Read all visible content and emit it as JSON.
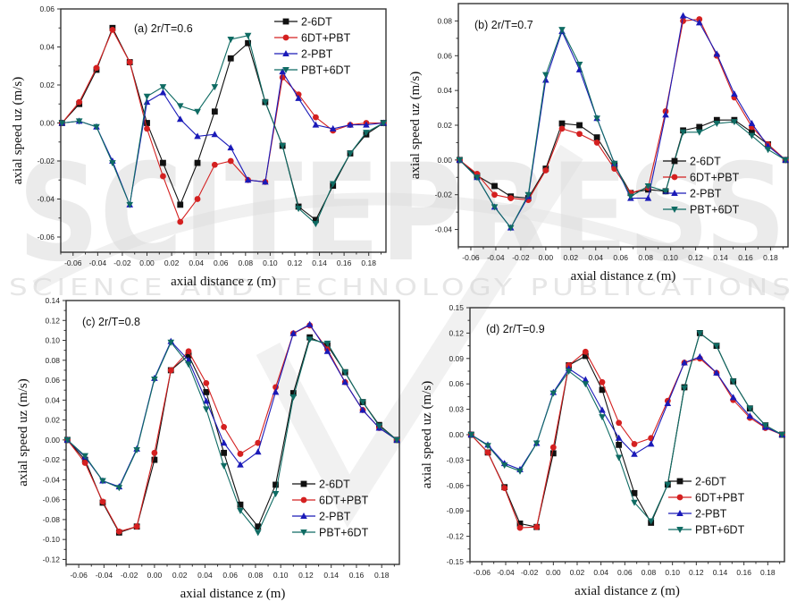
{
  "watermark": {
    "main": "SCITEPRESS",
    "sub": "SCIENCE AND TECHNOLOGY PUBLICATIONS"
  },
  "chart_data": [
    {
      "type": "line",
      "title": "(a)  2r/T=0.6",
      "xlabel": "axial distance  z  (m)",
      "ylabel": "axial speed  uz  (m/s)",
      "xlim": [
        -0.07,
        0.194
      ],
      "ylim": [
        -0.068,
        0.06
      ],
      "xticks": [
        -0.06,
        -0.04,
        -0.02,
        0.0,
        0.02,
        0.04,
        0.06,
        0.08,
        0.1,
        0.12,
        0.14,
        0.16,
        0.18
      ],
      "xtick_labels": [
        "-0.06",
        "-0.04",
        "-0.02",
        "0.00",
        "0.02",
        "0.04",
        "0.06",
        "0.08",
        "0.10",
        "0.12",
        "0.14",
        "0.16",
        "0.18"
      ],
      "yticks": [
        -0.06,
        -0.04,
        -0.02,
        0.0,
        0.02,
        0.04,
        0.06
      ],
      "ytick_labels": [
        "-0.06",
        "-0.04",
        "-0.02",
        "0.00",
        "0.02",
        "0.04",
        "0.06"
      ],
      "grid": false,
      "legend_position": "top-right",
      "x": [
        -0.069,
        -0.055,
        -0.041,
        -0.028,
        -0.014,
        0.0,
        0.013,
        0.027,
        0.041,
        0.055,
        0.068,
        0.082,
        0.096,
        0.11,
        0.123,
        0.137,
        0.151,
        0.165,
        0.178,
        0.192
      ],
      "series": [
        {
          "name": "2-6DT",
          "values": [
            0.0,
            0.01,
            0.028,
            0.05,
            0.032,
            0.0,
            -0.021,
            -0.043,
            -0.021,
            0.006,
            0.034,
            0.042,
            0.011,
            -0.012,
            -0.044,
            -0.051,
            -0.033,
            -0.016,
            -0.006,
            0.0
          ]
        },
        {
          "name": "6DT+PBT",
          "values": [
            0.0,
            0.011,
            0.029,
            0.049,
            0.032,
            -0.003,
            -0.028,
            -0.052,
            -0.04,
            -0.022,
            -0.02,
            -0.03,
            -0.031,
            0.024,
            0.015,
            0.003,
            -0.004,
            -0.001,
            0.0,
            0.0
          ]
        },
        {
          "name": "2-PBT",
          "values": [
            0.0,
            0.001,
            -0.002,
            -0.02,
            -0.043,
            0.011,
            0.016,
            0.002,
            -0.007,
            -0.006,
            -0.013,
            -0.03,
            -0.031,
            0.027,
            0.013,
            -0.001,
            -0.003,
            -0.001,
            -0.001,
            0.0
          ]
        },
        {
          "name": "PBT+6DT",
          "values": [
            0.0,
            0.001,
            -0.002,
            -0.021,
            -0.043,
            0.014,
            0.019,
            0.009,
            0.006,
            0.019,
            0.044,
            0.046,
            0.011,
            -0.012,
            -0.045,
            -0.053,
            -0.032,
            -0.016,
            -0.005,
            0.0
          ]
        }
      ]
    },
    {
      "type": "line",
      "title": "(b) 2r/T=0.7",
      "xlabel": "axial distance  z  (m)",
      "ylabel": "axial speed  uz  (m/s)",
      "xlim": [
        -0.07,
        0.194
      ],
      "ylim": [
        -0.05,
        0.09
      ],
      "xticks": [
        -0.06,
        -0.04,
        -0.02,
        0.0,
        0.02,
        0.04,
        0.06,
        0.08,
        0.1,
        0.12,
        0.14,
        0.16,
        0.18
      ],
      "xtick_labels": [
        "-0.06",
        "-0.04",
        "-0.02",
        "0.00",
        "0.02",
        "0.04",
        "0.06",
        "0.08",
        "0.10",
        "0.12",
        "0.14",
        "0.16",
        "0.18"
      ],
      "yticks": [
        -0.04,
        -0.02,
        0.0,
        0.02,
        0.04,
        0.06,
        0.08
      ],
      "ytick_labels": [
        "-0.04",
        "-0.02",
        "0.00",
        "0.02",
        "0.04",
        "0.06",
        "0.08"
      ],
      "grid": false,
      "legend_position": "bottom-right",
      "x": [
        -0.069,
        -0.055,
        -0.041,
        -0.028,
        -0.014,
        0.0,
        0.013,
        0.027,
        0.041,
        0.055,
        0.068,
        0.082,
        0.096,
        0.11,
        0.123,
        0.137,
        0.151,
        0.165,
        0.178,
        0.192
      ],
      "series": [
        {
          "name": "2-6DT",
          "values": [
            0.0,
            -0.009,
            -0.015,
            -0.021,
            -0.022,
            -0.005,
            0.021,
            0.02,
            0.013,
            -0.003,
            -0.019,
            -0.017,
            -0.018,
            0.017,
            0.019,
            0.023,
            0.023,
            0.016,
            0.009,
            0.0
          ]
        },
        {
          "name": "6DT+PBT",
          "values": [
            0.0,
            -0.008,
            -0.02,
            -0.022,
            -0.023,
            -0.006,
            0.018,
            0.015,
            0.01,
            -0.005,
            -0.019,
            -0.016,
            0.028,
            0.08,
            0.081,
            0.06,
            0.036,
            0.019,
            0.009,
            0.0
          ]
        },
        {
          "name": "2-PBT",
          "values": [
            0.0,
            -0.01,
            -0.027,
            -0.039,
            -0.021,
            0.046,
            0.074,
            0.052,
            0.024,
            -0.002,
            -0.022,
            -0.022,
            0.026,
            0.083,
            0.079,
            0.061,
            0.038,
            0.021,
            0.008,
            0.0
          ]
        },
        {
          "name": "PBT+6DT",
          "values": [
            0.0,
            -0.01,
            -0.027,
            -0.039,
            -0.02,
            0.049,
            0.075,
            0.055,
            0.024,
            -0.002,
            -0.021,
            -0.015,
            -0.018,
            0.016,
            0.016,
            0.021,
            0.022,
            0.014,
            0.006,
            0.0
          ]
        }
      ]
    },
    {
      "type": "line",
      "title": "(c)  2r/T=0.8",
      "xlabel": "axial distance  z  (m)",
      "ylabel": "axial speed  uz  (m/s)",
      "xlim": [
        -0.07,
        0.194
      ],
      "ylim": [
        -0.125,
        0.14
      ],
      "xticks": [
        -0.06,
        -0.04,
        -0.02,
        0.0,
        0.02,
        0.04,
        0.06,
        0.08,
        0.1,
        0.12,
        0.14,
        0.16,
        0.18
      ],
      "xtick_labels": [
        "-0.06",
        "-0.04",
        "-0.02",
        "0.00",
        "0.02",
        "0.04",
        "0.06",
        "0.08",
        "0.10",
        "0.12",
        "0.14",
        "0.16",
        "0.18"
      ],
      "yticks": [
        -0.12,
        -0.1,
        -0.08,
        -0.06,
        -0.04,
        -0.02,
        0.0,
        0.02,
        0.04,
        0.06,
        0.08,
        0.1,
        0.12,
        0.14
      ],
      "ytick_labels": [
        "-0.12",
        "-0.10",
        "-0.08",
        "-0.06",
        "-0.04",
        "-0.02",
        "0.00",
        "0.02",
        "0.04",
        "0.06",
        "0.08",
        "0.10",
        "0.12",
        "0.14"
      ],
      "grid": false,
      "legend_position": "bottom-right",
      "x": [
        -0.069,
        -0.055,
        -0.041,
        -0.028,
        -0.014,
        0.0,
        0.013,
        0.027,
        0.041,
        0.055,
        0.068,
        0.082,
        0.096,
        0.11,
        0.123,
        0.137,
        0.151,
        0.165,
        0.178,
        0.192
      ],
      "series": [
        {
          "name": "2-6DT",
          "values": [
            0.0,
            -0.02,
            -0.063,
            -0.093,
            -0.087,
            -0.02,
            0.07,
            0.085,
            0.048,
            -0.013,
            -0.065,
            -0.087,
            -0.045,
            0.047,
            0.103,
            0.095,
            0.068,
            0.038,
            0.015,
            0.0
          ]
        },
        {
          "name": "6DT+PBT",
          "values": [
            0.0,
            -0.023,
            -0.062,
            -0.092,
            -0.087,
            -0.013,
            0.07,
            0.089,
            0.057,
            0.013,
            -0.014,
            -0.003,
            0.053,
            0.107,
            0.115,
            0.091,
            0.058,
            0.03,
            0.012,
            0.0
          ]
        },
        {
          "name": "2-PBT",
          "values": [
            0.0,
            -0.017,
            -0.041,
            -0.047,
            -0.009,
            0.062,
            0.099,
            0.08,
            0.039,
            -0.003,
            -0.025,
            -0.012,
            0.048,
            0.107,
            0.116,
            0.089,
            0.058,
            0.03,
            0.012,
            0.0
          ]
        },
        {
          "name": "PBT+6DT",
          "values": [
            0.0,
            -0.016,
            -0.041,
            -0.048,
            -0.01,
            0.061,
            0.098,
            0.076,
            0.031,
            -0.026,
            -0.071,
            -0.093,
            -0.054,
            0.043,
            0.101,
            0.097,
            0.068,
            0.038,
            0.014,
            0.0
          ]
        }
      ]
    },
    {
      "type": "line",
      "title": "(d)  2r/T=0.9",
      "xlabel": "axial distance  z  (m)",
      "ylabel": "axial speed  uz  (m/s)",
      "xlim": [
        -0.07,
        0.194
      ],
      "ylim": [
        -0.15,
        0.15
      ],
      "xticks": [
        -0.06,
        -0.04,
        -0.02,
        0.0,
        0.02,
        0.04,
        0.06,
        0.08,
        0.1,
        0.12,
        0.14,
        0.16,
        0.18
      ],
      "xtick_labels": [
        "-0.06",
        "-0.04",
        "-0.02",
        "0.00",
        "0.02",
        "0.04",
        "0.06",
        "0.08",
        "0.10",
        "0.12",
        "0.14",
        "0.16",
        "0.18"
      ],
      "yticks": [
        -0.15,
        -0.12,
        -0.09,
        -0.06,
        -0.03,
        0.0,
        0.03,
        0.06,
        0.09,
        0.12,
        0.15
      ],
      "ytick_labels": [
        "-0.15",
        "-0.12",
        "-0.09",
        "-0.06",
        "-0.03",
        "0.00",
        "0.03",
        "0.06",
        "0.09",
        "0.12",
        "0.15"
      ],
      "grid": false,
      "legend_position": "bottom-right",
      "x": [
        -0.069,
        -0.055,
        -0.041,
        -0.028,
        -0.014,
        0.0,
        0.013,
        0.027,
        0.041,
        0.055,
        0.068,
        0.082,
        0.096,
        0.11,
        0.123,
        0.137,
        0.151,
        0.165,
        0.178,
        0.192
      ],
      "series": [
        {
          "name": "2-6DT",
          "values": [
            0.0,
            -0.021,
            -0.062,
            -0.105,
            -0.109,
            -0.022,
            0.082,
            0.093,
            0.053,
            -0.012,
            -0.069,
            -0.104,
            -0.059,
            0.056,
            0.12,
            0.105,
            0.063,
            0.031,
            0.011,
            0.0
          ]
        },
        {
          "name": "6DT+PBT",
          "values": [
            0.0,
            -0.021,
            -0.063,
            -0.11,
            -0.109,
            -0.015,
            0.082,
            0.098,
            0.062,
            0.014,
            -0.011,
            -0.004,
            0.04,
            0.085,
            0.09,
            0.073,
            0.041,
            0.02,
            0.008,
            0.0
          ]
        },
        {
          "name": "2-PBT",
          "values": [
            0.0,
            -0.012,
            -0.034,
            -0.041,
            -0.01,
            0.05,
            0.078,
            0.065,
            0.029,
            -0.004,
            -0.023,
            -0.011,
            0.037,
            0.085,
            0.092,
            0.073,
            0.044,
            0.022,
            0.009,
            0.0
          ]
        },
        {
          "name": "PBT+6DT",
          "values": [
            0.0,
            -0.013,
            -0.036,
            -0.043,
            -0.01,
            0.049,
            0.075,
            0.06,
            0.021,
            -0.027,
            -0.08,
            -0.102,
            -0.059,
            0.055,
            0.12,
            0.105,
            0.063,
            0.031,
            0.011,
            0.0
          ]
        }
      ]
    }
  ],
  "series_styles": [
    {
      "name": "2-6DT",
      "color": "#111111",
      "marker": "square"
    },
    {
      "name": "6DT+PBT",
      "color": "#d42020",
      "marker": "circle"
    },
    {
      "name": "2-PBT",
      "color": "#1a1ab8",
      "marker": "triangle-up"
    },
    {
      "name": "PBT+6DT",
      "color": "#0f6b63",
      "marker": "triangle-down"
    }
  ]
}
